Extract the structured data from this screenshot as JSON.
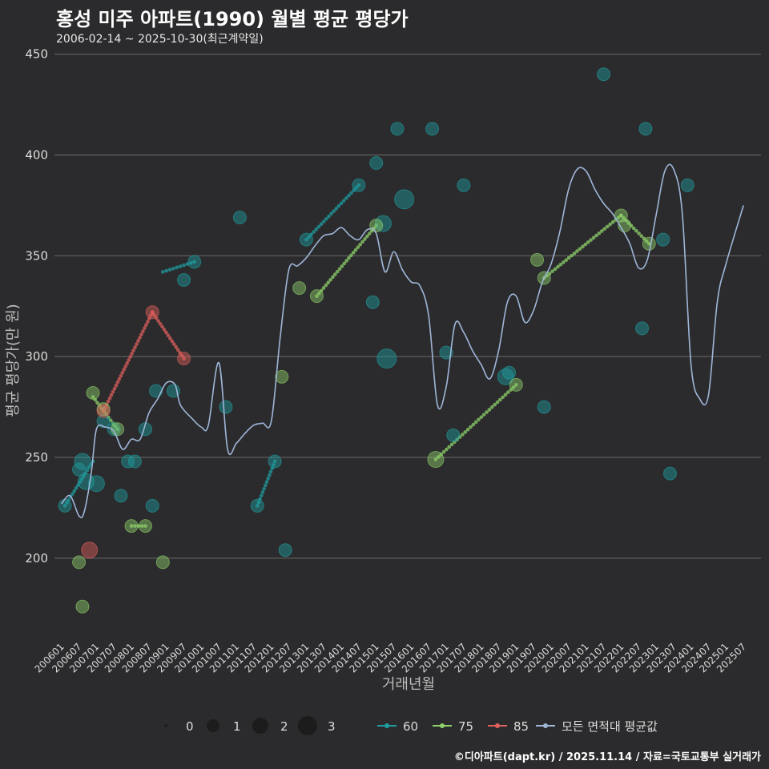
{
  "chart_data": {
    "type": "line+scatter",
    "title": "홍성 미주 아파트(1990) 월별 평균 평당가",
    "subtitle": "2006-02-14 ~ 2025-10-30(최근계약일)",
    "xlabel": "거래년월",
    "ylabel": "평균 평당가(만 원)",
    "ylim": [
      163,
      455
    ],
    "y_ticks": [
      200,
      250,
      300,
      350,
      400,
      450
    ],
    "x_tick_labels": [
      "200601",
      "200607",
      "200701",
      "200707",
      "200801",
      "200807",
      "200901",
      "200907",
      "201001",
      "201007",
      "201101",
      "201107",
      "201201",
      "201207",
      "201301",
      "201307",
      "201401",
      "201407",
      "201501",
      "201507",
      "201601",
      "201607",
      "201701",
      "201707",
      "201801",
      "201807",
      "201901",
      "201907",
      "202001",
      "202007",
      "202101",
      "202107",
      "202201",
      "202207",
      "202301",
      "202307",
      "202401",
      "202407",
      "202501",
      "202507"
    ],
    "size_legend": [
      "0",
      "1",
      "2",
      "3"
    ],
    "colors": {
      "s60": "#1f9ea0",
      "s75": "#8fd16a",
      "s85": "#e0605c",
      "avg": "#9fb6d8",
      "grid": "#6a6a6a",
      "text": "#dcdcdc"
    },
    "series": [
      {
        "name": "60",
        "points": [
          [
            2006.1,
            226,
            1
          ],
          [
            2006.5,
            244,
            1
          ],
          [
            2006.6,
            248,
            2
          ],
          [
            2006.7,
            238,
            2
          ],
          [
            2007.0,
            237,
            2
          ],
          [
            2007.2,
            268,
            1
          ],
          [
            2007.5,
            264,
            1
          ],
          [
            2007.7,
            231,
            1
          ],
          [
            2007.9,
            248,
            1
          ],
          [
            2008.1,
            248,
            1
          ],
          [
            2008.4,
            264,
            1
          ],
          [
            2008.6,
            226,
            1
          ],
          [
            2008.7,
            283,
            1
          ],
          [
            2009.2,
            283,
            1
          ],
          [
            2009.5,
            338,
            1
          ],
          [
            2009.8,
            347,
            1
          ],
          [
            2010.7,
            275,
            1
          ],
          [
            2011.1,
            369,
            1
          ],
          [
            2011.6,
            226,
            1
          ],
          [
            2012.1,
            248,
            1
          ],
          [
            2012.4,
            204,
            1
          ],
          [
            2013.0,
            358,
            1
          ],
          [
            2014.5,
            385,
            1
          ],
          [
            2014.9,
            327,
            1
          ],
          [
            2015.0,
            396,
            1
          ],
          [
            2015.2,
            366,
            2
          ],
          [
            2015.3,
            299,
            3
          ],
          [
            2015.6,
            413,
            1
          ],
          [
            2015.8,
            378,
            3
          ],
          [
            2016.6,
            413,
            1
          ],
          [
            2017.0,
            302,
            1
          ],
          [
            2017.2,
            261,
            1
          ],
          [
            2017.5,
            385,
            1
          ],
          [
            2018.7,
            290,
            2
          ],
          [
            2018.8,
            292,
            1
          ],
          [
            2019.8,
            275,
            1
          ],
          [
            2021.5,
            440,
            1
          ],
          [
            2022.6,
            314,
            1
          ],
          [
            2022.7,
            413,
            1
          ],
          [
            2023.2,
            358,
            1
          ],
          [
            2023.4,
            242,
            1
          ],
          [
            2023.9,
            385,
            1
          ]
        ],
        "lines": [
          [
            [
              2006.1,
              226
            ],
            [
              2006.9,
              248
            ]
          ],
          [
            [
              2008.9,
              342
            ],
            [
              2009.8,
              347
            ]
          ],
          [
            [
              2011.6,
              226
            ],
            [
              2012.1,
              248
            ]
          ],
          [
            [
              2013.0,
              358
            ],
            [
              2014.5,
              385
            ]
          ]
        ]
      },
      {
        "name": "75",
        "points": [
          [
            2006.5,
            198,
            1
          ],
          [
            2006.6,
            176,
            1
          ],
          [
            2006.9,
            282,
            1
          ],
          [
            2007.2,
            274,
            1
          ],
          [
            2007.6,
            264,
            1
          ],
          [
            2008.0,
            216,
            1
          ],
          [
            2008.4,
            216,
            1
          ],
          [
            2008.9,
            198,
            1
          ],
          [
            2012.3,
            290,
            1
          ],
          [
            2012.8,
            334,
            1
          ],
          [
            2013.3,
            330,
            1
          ],
          [
            2015.0,
            365,
            1
          ],
          [
            2016.7,
            249,
            2
          ],
          [
            2019.0,
            286,
            1
          ],
          [
            2019.6,
            348,
            1
          ],
          [
            2019.8,
            339,
            1
          ],
          [
            2022.0,
            370,
            1
          ],
          [
            2022.1,
            365,
            1
          ],
          [
            2022.8,
            356,
            1
          ]
        ],
        "lines": [
          [
            [
              2006.9,
              280
            ],
            [
              2007.6,
              264
            ]
          ],
          [
            [
              2008.0,
              216
            ],
            [
              2008.4,
              216
            ]
          ],
          [
            [
              2013.3,
              330
            ],
            [
              2015.0,
              365
            ]
          ],
          [
            [
              2016.7,
              249
            ],
            [
              2019.0,
              286
            ]
          ],
          [
            [
              2019.8,
              339
            ],
            [
              2022.0,
              370
            ]
          ],
          [
            [
              2022.0,
              370
            ],
            [
              2022.8,
              356
            ]
          ]
        ]
      },
      {
        "name": "85",
        "points": [
          [
            2006.8,
            204,
            2
          ],
          [
            2007.2,
            273,
            1
          ],
          [
            2008.6,
            322,
            1
          ],
          [
            2009.5,
            299,
            1
          ]
        ],
        "lines": [
          [
            [
              2007.2,
              273
            ],
            [
              2008.6,
              322
            ]
          ],
          [
            [
              2008.6,
              322
            ],
            [
              2009.5,
              299
            ]
          ]
        ]
      },
      {
        "name": "모든 면적대 평균값",
        "points": [
          [
            2006.0,
            227
          ],
          [
            2006.25,
            231
          ],
          [
            2006.5,
            221
          ],
          [
            2006.65,
            223
          ],
          [
            2006.85,
            242
          ],
          [
            2007.0,
            264
          ],
          [
            2007.25,
            265
          ],
          [
            2007.5,
            263
          ],
          [
            2007.75,
            254
          ],
          [
            2008.0,
            259
          ],
          [
            2008.25,
            259
          ],
          [
            2008.5,
            272
          ],
          [
            2008.75,
            279
          ],
          [
            2009.0,
            287
          ],
          [
            2009.25,
            286
          ],
          [
            2009.4,
            276
          ],
          [
            2009.75,
            269
          ],
          [
            2010.0,
            265
          ],
          [
            2010.2,
            266
          ],
          [
            2010.5,
            297
          ],
          [
            2010.75,
            254
          ],
          [
            2011.0,
            257
          ],
          [
            2011.25,
            262
          ],
          [
            2011.5,
            266
          ],
          [
            2011.75,
            267
          ],
          [
            2012.0,
            268
          ],
          [
            2012.25,
            309
          ],
          [
            2012.5,
            343
          ],
          [
            2012.75,
            345
          ],
          [
            2013.0,
            349
          ],
          [
            2013.25,
            355
          ],
          [
            2013.5,
            360
          ],
          [
            2013.75,
            361
          ],
          [
            2014.0,
            364
          ],
          [
            2014.25,
            360
          ],
          [
            2014.5,
            358
          ],
          [
            2014.75,
            363
          ],
          [
            2015.0,
            361
          ],
          [
            2015.25,
            342
          ],
          [
            2015.5,
            352
          ],
          [
            2015.75,
            343
          ],
          [
            2016.0,
            337
          ],
          [
            2016.25,
            335
          ],
          [
            2016.5,
            320
          ],
          [
            2016.75,
            276
          ],
          [
            2017.0,
            285
          ],
          [
            2017.25,
            316
          ],
          [
            2017.5,
            312
          ],
          [
            2017.75,
            303
          ],
          [
            2018.0,
            296
          ],
          [
            2018.25,
            289
          ],
          [
            2018.5,
            303
          ],
          [
            2018.75,
            327
          ],
          [
            2019.0,
            330
          ],
          [
            2019.25,
            317
          ],
          [
            2019.5,
            323
          ],
          [
            2019.75,
            337
          ],
          [
            2020.0,
            346
          ],
          [
            2020.25,
            362
          ],
          [
            2020.5,
            383
          ],
          [
            2020.75,
            393
          ],
          [
            2021.0,
            392
          ],
          [
            2021.25,
            383
          ],
          [
            2021.5,
            376
          ],
          [
            2021.75,
            371
          ],
          [
            2022.0,
            364
          ],
          [
            2022.25,
            356
          ],
          [
            2022.5,
            344
          ],
          [
            2022.75,
            348
          ],
          [
            2023.0,
            370
          ],
          [
            2023.25,
            392
          ],
          [
            2023.5,
            393
          ],
          [
            2023.75,
            371
          ],
          [
            2024.0,
            296
          ],
          [
            2024.25,
            279
          ],
          [
            2024.5,
            281
          ],
          [
            2024.75,
            327
          ],
          [
            2025.0,
            346
          ],
          [
            2025.5,
            375
          ]
        ]
      }
    ]
  },
  "credit": "©디아파트(dapt.kr) / 2025.11.14 / 자료=국토교통부 실거래가"
}
